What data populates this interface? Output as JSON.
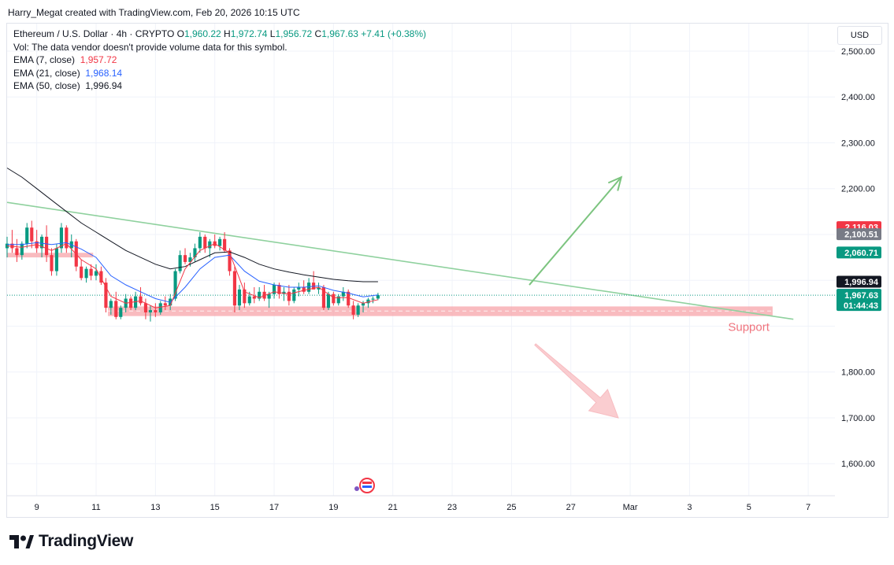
{
  "attribution": "Harry_Megat created with TradingView.com, Feb 20, 2026 10:15 UTC",
  "legend": {
    "symbol": "Ethereum / U.S. Dollar · 4h · CRYPTO",
    "open_label": "O",
    "open": "1,960.22",
    "high_label": "H",
    "high": "1,972.74",
    "low_label": "L",
    "low": "1,956.72",
    "close_label": "C",
    "close": "1,967.63",
    "change": "+7.41 (+0.38%)",
    "volume_note": "Vol: The data vendor doesn't provide volume data for this symbol.",
    "ema7_label": "EMA (7, close)",
    "ema7_value": "1,957.72",
    "ema21_label": "EMA (21, close)",
    "ema21_value": "1,968.14",
    "ema50_label": "EMA (50, close)",
    "ema50_value": "1,996.94"
  },
  "currency_button": "USD",
  "brand_name": "TradingView",
  "colors": {
    "up": "#089981",
    "down": "#f23645",
    "ema7": "#f23645",
    "ema21": "#2962ff",
    "ema50": "#131722",
    "trendline": "#8fd19e",
    "support_zone": "#f7a4aa",
    "arrow_up": "#7cc47f",
    "arrow_down": "#f9b8bd"
  },
  "chart_data": {
    "type": "candlestick",
    "timeframe": "4h",
    "y_ticks": [
      "2,500.00",
      "2,400.00",
      "2,300.00",
      "2,200.00",
      "1,800.00",
      "1,700.00",
      "1,600.00"
    ],
    "y_tick_values": [
      2500,
      2400,
      2300,
      2200,
      1800,
      1700,
      1600
    ],
    "ylim": [
      1530,
      2560
    ],
    "x_ticks": [
      "9",
      "11",
      "13",
      "15",
      "17",
      "19",
      "21",
      "23",
      "25",
      "27",
      "Mar",
      "3",
      "5",
      "7"
    ],
    "x_tick_days": [
      9,
      11,
      13,
      15,
      17,
      19,
      21,
      23,
      25,
      27,
      29,
      31,
      33,
      35
    ],
    "xlim_days": [
      8.0,
      35.9
    ],
    "price_tags": [
      {
        "label": "2,116.03",
        "value": 2116.03,
        "color": "#f23645"
      },
      {
        "label": "2,100.51",
        "value": 2100.51,
        "color": "#787b86"
      },
      {
        "label": "2,060.71",
        "value": 2060.71,
        "color": "#089981"
      },
      {
        "label": "1,996.94",
        "value": 1996.94,
        "color": "#131722"
      },
      {
        "label": "1,968.14",
        "value": 1968.14,
        "color": "#2962ff"
      },
      {
        "label": "1,957.72",
        "value": 1957.72,
        "color": "#f23645"
      }
    ],
    "last_price_tag": {
      "label": "1,967.63",
      "countdown": "01:44:43",
      "value": 1967.63,
      "color": "#089981"
    },
    "candles": [
      {
        "t": 8.0,
        "o": 2070,
        "h": 2095,
        "l": 2050,
        "c": 2080
      },
      {
        "t": 8.17,
        "o": 2080,
        "h": 2110,
        "l": 2060,
        "c": 2070
      },
      {
        "t": 8.33,
        "o": 2070,
        "h": 2090,
        "l": 2040,
        "c": 2055
      },
      {
        "t": 8.5,
        "o": 2055,
        "h": 2085,
        "l": 2045,
        "c": 2080
      },
      {
        "t": 8.67,
        "o": 2080,
        "h": 2125,
        "l": 2070,
        "c": 2115
      },
      {
        "t": 8.83,
        "o": 2115,
        "h": 2130,
        "l": 2070,
        "c": 2085
      },
      {
        "t": 9.0,
        "o": 2085,
        "h": 2110,
        "l": 2060,
        "c": 2070
      },
      {
        "t": 9.17,
        "o": 2070,
        "h": 2100,
        "l": 2050,
        "c": 2095
      },
      {
        "t": 9.33,
        "o": 2095,
        "h": 2120,
        "l": 2040,
        "c": 2055
      },
      {
        "t": 9.5,
        "o": 2055,
        "h": 2070,
        "l": 2010,
        "c": 2020
      },
      {
        "t": 9.67,
        "o": 2020,
        "h": 2080,
        "l": 2010,
        "c": 2070
      },
      {
        "t": 9.83,
        "o": 2070,
        "h": 2125,
        "l": 2060,
        "c": 2115
      },
      {
        "t": 10.0,
        "o": 2115,
        "h": 2120,
        "l": 2060,
        "c": 2070
      },
      {
        "t": 10.17,
        "o": 2070,
        "h": 2100,
        "l": 2050,
        "c": 2085
      },
      {
        "t": 10.33,
        "o": 2085,
        "h": 2090,
        "l": 2020,
        "c": 2030
      },
      {
        "t": 10.5,
        "o": 2030,
        "h": 2045,
        "l": 2000,
        "c": 2005
      },
      {
        "t": 10.67,
        "o": 2005,
        "h": 2030,
        "l": 1995,
        "c": 2025
      },
      {
        "t": 10.83,
        "o": 2025,
        "h": 2035,
        "l": 2000,
        "c": 2010
      },
      {
        "t": 11.0,
        "o": 2010,
        "h": 2035,
        "l": 2000,
        "c": 2020
      },
      {
        "t": 11.17,
        "o": 2020,
        "h": 2030,
        "l": 1990,
        "c": 1995
      },
      {
        "t": 11.33,
        "o": 1995,
        "h": 2005,
        "l": 1930,
        "c": 1940
      },
      {
        "t": 11.5,
        "o": 1940,
        "h": 1960,
        "l": 1925,
        "c": 1955
      },
      {
        "t": 11.67,
        "o": 1955,
        "h": 1975,
        "l": 1915,
        "c": 1920
      },
      {
        "t": 11.83,
        "o": 1920,
        "h": 1945,
        "l": 1915,
        "c": 1940
      },
      {
        "t": 12.0,
        "o": 1940,
        "h": 1970,
        "l": 1930,
        "c": 1960
      },
      {
        "t": 12.17,
        "o": 1960,
        "h": 1965,
        "l": 1935,
        "c": 1940
      },
      {
        "t": 12.33,
        "o": 1940,
        "h": 1975,
        "l": 1935,
        "c": 1965
      },
      {
        "t": 12.5,
        "o": 1965,
        "h": 1985,
        "l": 1945,
        "c": 1950
      },
      {
        "t": 12.67,
        "o": 1950,
        "h": 1960,
        "l": 1915,
        "c": 1930
      },
      {
        "t": 12.83,
        "o": 1930,
        "h": 1945,
        "l": 1910,
        "c": 1935
      },
      {
        "t": 13.0,
        "o": 1935,
        "h": 1950,
        "l": 1920,
        "c": 1930
      },
      {
        "t": 13.17,
        "o": 1930,
        "h": 1955,
        "l": 1925,
        "c": 1950
      },
      {
        "t": 13.33,
        "o": 1950,
        "h": 1965,
        "l": 1935,
        "c": 1945
      },
      {
        "t": 13.5,
        "o": 1945,
        "h": 1970,
        "l": 1935,
        "c": 1960
      },
      {
        "t": 13.67,
        "o": 1960,
        "h": 2025,
        "l": 1955,
        "c": 2020
      },
      {
        "t": 13.83,
        "o": 2020,
        "h": 2065,
        "l": 2015,
        "c": 2055
      },
      {
        "t": 14.0,
        "o": 2055,
        "h": 2070,
        "l": 2035,
        "c": 2040
      },
      {
        "t": 14.17,
        "o": 2040,
        "h": 2060,
        "l": 2030,
        "c": 2050
      },
      {
        "t": 14.33,
        "o": 2050,
        "h": 2080,
        "l": 2040,
        "c": 2070
      },
      {
        "t": 14.5,
        "o": 2070,
        "h": 2105,
        "l": 2060,
        "c": 2095
      },
      {
        "t": 14.67,
        "o": 2095,
        "h": 2100,
        "l": 2060,
        "c": 2070
      },
      {
        "t": 14.83,
        "o": 2070,
        "h": 2090,
        "l": 2050,
        "c": 2085
      },
      {
        "t": 15.0,
        "o": 2085,
        "h": 2100,
        "l": 2070,
        "c": 2075
      },
      {
        "t": 15.17,
        "o": 2075,
        "h": 2095,
        "l": 2065,
        "c": 2090
      },
      {
        "t": 15.33,
        "o": 2090,
        "h": 2105,
        "l": 2060,
        "c": 2065
      },
      {
        "t": 15.5,
        "o": 2065,
        "h": 2070,
        "l": 2010,
        "c": 2020
      },
      {
        "t": 15.67,
        "o": 2020,
        "h": 2030,
        "l": 1930,
        "c": 1945
      },
      {
        "t": 15.83,
        "o": 1945,
        "h": 1990,
        "l": 1935,
        "c": 1980
      },
      {
        "t": 16.0,
        "o": 1980,
        "h": 1995,
        "l": 1940,
        "c": 1950
      },
      {
        "t": 16.17,
        "o": 1950,
        "h": 1975,
        "l": 1945,
        "c": 1965
      },
      {
        "t": 16.33,
        "o": 1965,
        "h": 1985,
        "l": 1950,
        "c": 1960
      },
      {
        "t": 16.5,
        "o": 1960,
        "h": 1985,
        "l": 1955,
        "c": 1975
      },
      {
        "t": 16.67,
        "o": 1975,
        "h": 1990,
        "l": 1955,
        "c": 1960
      },
      {
        "t": 16.83,
        "o": 1960,
        "h": 1975,
        "l": 1940,
        "c": 1970
      },
      {
        "t": 17.0,
        "o": 1970,
        "h": 1995,
        "l": 1960,
        "c": 1990
      },
      {
        "t": 17.17,
        "o": 1990,
        "h": 1995,
        "l": 1960,
        "c": 1970
      },
      {
        "t": 17.33,
        "o": 1970,
        "h": 1985,
        "l": 1955,
        "c": 1975
      },
      {
        "t": 17.5,
        "o": 1975,
        "h": 1990,
        "l": 1945,
        "c": 1955
      },
      {
        "t": 17.67,
        "o": 1955,
        "h": 1985,
        "l": 1950,
        "c": 1980
      },
      {
        "t": 17.83,
        "o": 1980,
        "h": 1995,
        "l": 1965,
        "c": 1985
      },
      {
        "t": 18.0,
        "o": 1985,
        "h": 2000,
        "l": 1970,
        "c": 1975
      },
      {
        "t": 18.17,
        "o": 1975,
        "h": 2005,
        "l": 1970,
        "c": 1995
      },
      {
        "t": 18.33,
        "o": 1995,
        "h": 2020,
        "l": 1985,
        "c": 1980
      },
      {
        "t": 18.5,
        "o": 1980,
        "h": 1995,
        "l": 1970,
        "c": 1985
      },
      {
        "t": 18.67,
        "o": 1985,
        "h": 1990,
        "l": 1935,
        "c": 1940
      },
      {
        "t": 18.83,
        "o": 1940,
        "h": 1975,
        "l": 1935,
        "c": 1970
      },
      {
        "t": 19.0,
        "o": 1970,
        "h": 1975,
        "l": 1945,
        "c": 1950
      },
      {
        "t": 19.17,
        "o": 1950,
        "h": 1970,
        "l": 1945,
        "c": 1965
      },
      {
        "t": 19.33,
        "o": 1965,
        "h": 1985,
        "l": 1955,
        "c": 1975
      },
      {
        "t": 19.5,
        "o": 1975,
        "h": 1980,
        "l": 1940,
        "c": 1945
      },
      {
        "t": 19.67,
        "o": 1945,
        "h": 1955,
        "l": 1915,
        "c": 1925
      },
      {
        "t": 19.83,
        "o": 1925,
        "h": 1950,
        "l": 1920,
        "c": 1945
      },
      {
        "t": 20.0,
        "o": 1945,
        "h": 1955,
        "l": 1930,
        "c": 1950
      },
      {
        "t": 20.17,
        "o": 1950,
        "h": 1962,
        "l": 1940,
        "c": 1958
      },
      {
        "t": 20.33,
        "o": 1958,
        "h": 1965,
        "l": 1950,
        "c": 1960
      },
      {
        "t": 20.5,
        "o": 1960.22,
        "h": 1972.74,
        "l": 1956.72,
        "c": 1967.63
      }
    ],
    "ema7": [
      [
        8.0,
        2075
      ],
      [
        8.5,
        2072
      ],
      [
        9.0,
        2078
      ],
      [
        9.5,
        2065
      ],
      [
        10.0,
        2080
      ],
      [
        10.5,
        2045
      ],
      [
        11.0,
        2025
      ],
      [
        11.5,
        1965
      ],
      [
        12.0,
        1950
      ],
      [
        12.5,
        1955
      ],
      [
        13.0,
        1940
      ],
      [
        13.5,
        1945
      ],
      [
        14.0,
        2025
      ],
      [
        14.5,
        2065
      ],
      [
        15.0,
        2080
      ],
      [
        15.5,
        2060
      ],
      [
        16.0,
        1975
      ],
      [
        16.5,
        1962
      ],
      [
        17.0,
        1975
      ],
      [
        17.5,
        1970
      ],
      [
        18.0,
        1978
      ],
      [
        18.5,
        1985
      ],
      [
        19.0,
        1962
      ],
      [
        19.5,
        1962
      ],
      [
        20.0,
        1950
      ],
      [
        20.5,
        1957.72
      ]
    ],
    "ema21": [
      [
        8.0,
        2078
      ],
      [
        8.5,
        2078
      ],
      [
        9.0,
        2082
      ],
      [
        9.5,
        2078
      ],
      [
        10.0,
        2082
      ],
      [
        10.5,
        2068
      ],
      [
        11.0,
        2050
      ],
      [
        11.5,
        2010
      ],
      [
        12.0,
        1990
      ],
      [
        12.5,
        1975
      ],
      [
        13.0,
        1960
      ],
      [
        13.5,
        1952
      ],
      [
        14.0,
        1985
      ],
      [
        14.5,
        2025
      ],
      [
        15.0,
        2050
      ],
      [
        15.5,
        2055
      ],
      [
        16.0,
        2020
      ],
      [
        16.5,
        1998
      ],
      [
        17.0,
        1990
      ],
      [
        17.5,
        1985
      ],
      [
        18.0,
        1985
      ],
      [
        18.5,
        1988
      ],
      [
        19.0,
        1978
      ],
      [
        19.5,
        1972
      ],
      [
        20.0,
        1964
      ],
      [
        20.5,
        1968.14
      ]
    ],
    "ema50": [
      [
        8.0,
        2245
      ],
      [
        8.5,
        2225
      ],
      [
        9.0,
        2200
      ],
      [
        9.5,
        2175
      ],
      [
        10.0,
        2150
      ],
      [
        10.5,
        2125
      ],
      [
        11.0,
        2105
      ],
      [
        11.5,
        2085
      ],
      [
        12.0,
        2065
      ],
      [
        12.5,
        2050
      ],
      [
        13.0,
        2035
      ],
      [
        13.5,
        2025
      ],
      [
        14.0,
        2030
      ],
      [
        14.5,
        2045
      ],
      [
        15.0,
        2060
      ],
      [
        15.5,
        2062
      ],
      [
        16.0,
        2050
      ],
      [
        16.5,
        2035
      ],
      [
        17.0,
        2025
      ],
      [
        17.5,
        2018
      ],
      [
        18.0,
        2012
      ],
      [
        18.5,
        2007
      ],
      [
        19.0,
        2002
      ],
      [
        19.5,
        1999
      ],
      [
        20.0,
        1997
      ],
      [
        20.5,
        1996.94
      ]
    ],
    "trendline": [
      [
        8.0,
        2170
      ],
      [
        34.5,
        1915
      ]
    ],
    "support_zone": {
      "label": "Support",
      "from_day": 11.4,
      "to_day": 33.8,
      "low": 1922,
      "high": 1943,
      "mid": 1933
    },
    "left_zone": {
      "from_day": 8.0,
      "to_day": 10.9,
      "low": 2050,
      "high": 2060
    },
    "arrow_up": {
      "from": [
        25.6,
        1990
      ],
      "to": [
        28.7,
        2225
      ]
    },
    "arrow_down": {
      "from": [
        25.8,
        1860
      ],
      "to": [
        28.6,
        1700
      ]
    }
  }
}
